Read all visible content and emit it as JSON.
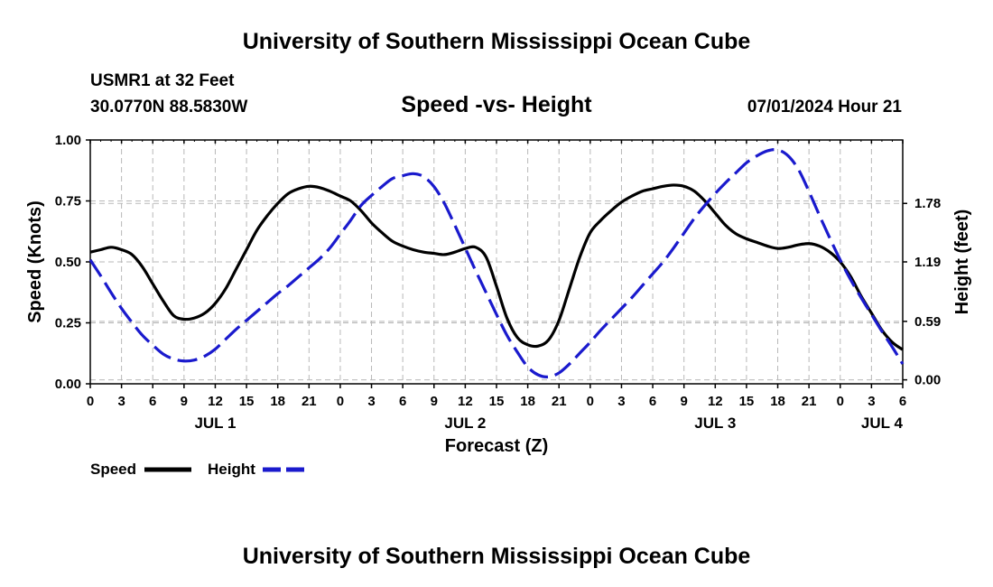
{
  "page": {
    "title_top": "University of Southern Mississippi Ocean Cube",
    "title_bottom": "University of Southern Mississippi Ocean Cube",
    "station": "USMR1 at 32 Feet",
    "location": "30.0770N  88.5830W",
    "run_time": "07/01/2024 Hour 21"
  },
  "legend": {
    "speed_label": "Speed",
    "height_label": "Height"
  },
  "colors": {
    "speed": "#000000",
    "height": "#1a1acd",
    "grid": "#b8b8b8"
  },
  "chart_data": {
    "type": "line",
    "title": "Speed -vs- Height",
    "xlabel": "Forecast (Z)",
    "ylabel": "Speed (Knots)",
    "y2label": "Height (feet)",
    "xlim": [
      0,
      78
    ],
    "ylim": [
      0,
      1
    ],
    "y2lim": [
      -0.04,
      2.42
    ],
    "x_ticks": [
      0,
      3,
      6,
      9,
      12,
      15,
      18,
      21,
      24,
      27,
      30,
      33,
      36,
      39,
      42,
      45,
      48,
      51,
      54,
      57,
      60,
      63,
      66,
      69,
      72,
      75,
      78
    ],
    "x_tick_labels": [
      "0",
      "3",
      "6",
      "9",
      "12",
      "15",
      "18",
      "21",
      "0",
      "3",
      "6",
      "9",
      "12",
      "15",
      "18",
      "21",
      "0",
      "3",
      "6",
      "9",
      "12",
      "15",
      "18",
      "21",
      "0",
      "3",
      "6"
    ],
    "y_ticks": [
      0,
      0.25,
      0.5,
      0.75,
      1.0
    ],
    "y_tick_labels": [
      "0.00",
      "0.25",
      "0.50",
      "0.75",
      "1.00"
    ],
    "y2_ticks": [
      0.0,
      0.59,
      1.19,
      1.78
    ],
    "y2_tick_labels": [
      "0.00",
      "0.59",
      "1.19",
      "1.78"
    ],
    "day_labels": [
      {
        "x": 12,
        "label": "JUL 1"
      },
      {
        "x": 36,
        "label": "JUL 2"
      },
      {
        "x": 60,
        "label": "JUL 3"
      },
      {
        "x": 76,
        "label": "JUL 4"
      }
    ],
    "series": [
      {
        "name": "Speed",
        "axis": "left",
        "style": "solid",
        "x": [
          0,
          1,
          2,
          3,
          4,
          5,
          6,
          7,
          8,
          9,
          10,
          11,
          12,
          13,
          14,
          15,
          16,
          17,
          18,
          19,
          20,
          21,
          22,
          23,
          24,
          25,
          26,
          27,
          28,
          29,
          30,
          31,
          32,
          33,
          34,
          35,
          36,
          37,
          38,
          39,
          40,
          41,
          42,
          43,
          44,
          45,
          46,
          47,
          48,
          49,
          50,
          51,
          52,
          53,
          54,
          55,
          56,
          57,
          58,
          59,
          60,
          61,
          62,
          63,
          64,
          65,
          66,
          67,
          68,
          69,
          70,
          71,
          72,
          73,
          74,
          75,
          76,
          77,
          78
        ],
        "values": [
          0.54,
          0.55,
          0.56,
          0.55,
          0.53,
          0.48,
          0.41,
          0.34,
          0.28,
          0.265,
          0.27,
          0.29,
          0.33,
          0.39,
          0.47,
          0.55,
          0.63,
          0.69,
          0.74,
          0.78,
          0.8,
          0.81,
          0.805,
          0.79,
          0.77,
          0.75,
          0.71,
          0.66,
          0.62,
          0.585,
          0.565,
          0.55,
          0.54,
          0.535,
          0.53,
          0.54,
          0.555,
          0.56,
          0.52,
          0.4,
          0.27,
          0.19,
          0.16,
          0.155,
          0.18,
          0.26,
          0.39,
          0.52,
          0.62,
          0.67,
          0.71,
          0.745,
          0.77,
          0.79,
          0.8,
          0.81,
          0.815,
          0.81,
          0.79,
          0.75,
          0.7,
          0.65,
          0.615,
          0.595,
          0.58,
          0.565,
          0.555,
          0.56,
          0.57,
          0.575,
          0.565,
          0.54,
          0.5,
          0.44,
          0.36,
          0.29,
          0.22,
          0.17,
          0.14
        ]
      },
      {
        "name": "Height",
        "axis": "right",
        "style": "dashed",
        "x": [
          0,
          1,
          2,
          3,
          4,
          5,
          6,
          7,
          8,
          9,
          10,
          11,
          12,
          13,
          14,
          15,
          16,
          17,
          18,
          19,
          20,
          21,
          22,
          23,
          24,
          25,
          26,
          27,
          28,
          29,
          30,
          31,
          32,
          33,
          34,
          35,
          36,
          37,
          38,
          39,
          40,
          41,
          42,
          43,
          44,
          45,
          46,
          47,
          48,
          49,
          50,
          51,
          52,
          53,
          54,
          55,
          56,
          57,
          58,
          59,
          60,
          61,
          62,
          63,
          64,
          65,
          66,
          67,
          68,
          69,
          70,
          71,
          72,
          73,
          74,
          75,
          76,
          77,
          78
        ],
        "values": [
          1.21,
          1.05,
          0.88,
          0.72,
          0.58,
          0.45,
          0.35,
          0.26,
          0.21,
          0.19,
          0.2,
          0.24,
          0.31,
          0.41,
          0.51,
          0.6,
          0.69,
          0.78,
          0.87,
          0.95,
          1.04,
          1.13,
          1.22,
          1.33,
          1.47,
          1.61,
          1.76,
          1.86,
          1.95,
          2.03,
          2.06,
          2.08,
          2.05,
          1.95,
          1.78,
          1.56,
          1.33,
          1.1,
          0.88,
          0.66,
          0.45,
          0.28,
          0.13,
          0.05,
          0.03,
          0.07,
          0.16,
          0.27,
          0.38,
          0.5,
          0.61,
          0.72,
          0.83,
          0.95,
          1.07,
          1.19,
          1.33,
          1.48,
          1.63,
          1.76,
          1.88,
          1.99,
          2.09,
          2.19,
          2.26,
          2.31,
          2.32,
          2.26,
          2.12,
          1.9,
          1.66,
          1.43,
          1.21,
          1.01,
          0.83,
          0.66,
          0.49,
          0.33,
          0.16
        ]
      }
    ]
  }
}
